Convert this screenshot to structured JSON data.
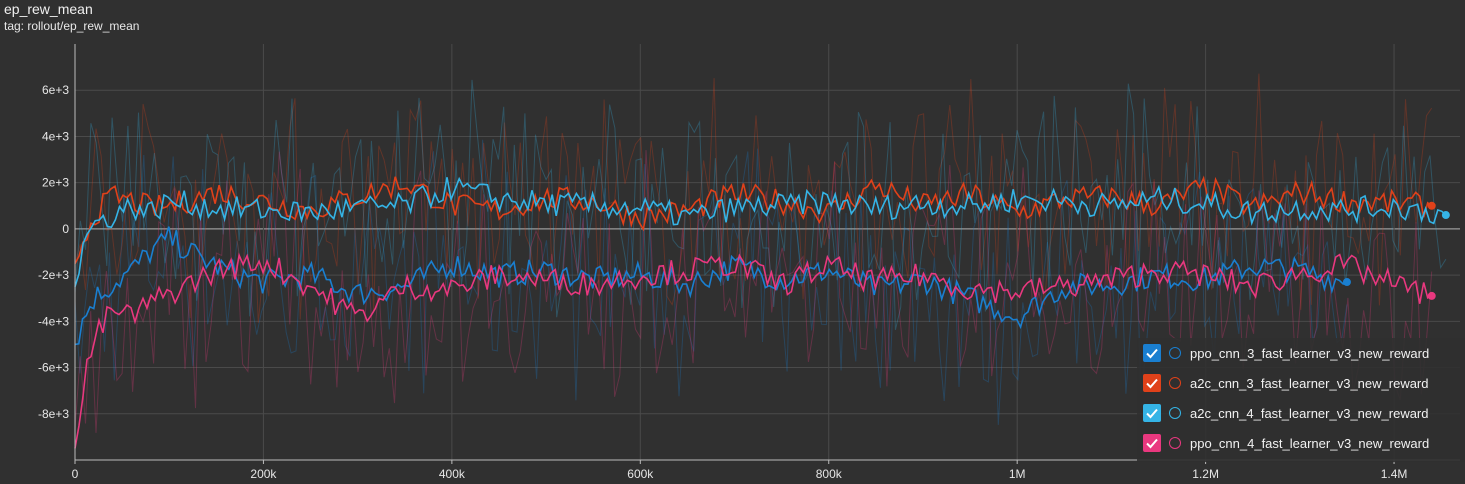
{
  "header": {
    "title": "ep_rew_mean",
    "subtitle": "tag: rollout/ep_rew_mean"
  },
  "chart_data": {
    "type": "line",
    "xlabel": "",
    "ylabel": "",
    "xlim": [
      0,
      1470000
    ],
    "ylim": [
      -10000,
      8000
    ],
    "x_ticks": [
      {
        "value": 0,
        "label": "0"
      },
      {
        "value": 200000,
        "label": "200k"
      },
      {
        "value": 400000,
        "label": "400k"
      },
      {
        "value": 600000,
        "label": "600k"
      },
      {
        "value": 800000,
        "label": "800k"
      },
      {
        "value": 1000000,
        "label": "1M"
      },
      {
        "value": 1200000,
        "label": "1.2M"
      },
      {
        "value": 1400000,
        "label": "1.4M"
      }
    ],
    "y_ticks": [
      {
        "value": 6000,
        "label": "6e+3"
      },
      {
        "value": 4000,
        "label": "4e+3"
      },
      {
        "value": 2000,
        "label": "2e+3"
      },
      {
        "value": 0,
        "label": "0"
      },
      {
        "value": -2000,
        "label": "-2e+3"
      },
      {
        "value": -4000,
        "label": "-4e+3"
      },
      {
        "value": -6000,
        "label": "-6e+3"
      },
      {
        "value": -8000,
        "label": "-8e+3"
      }
    ],
    "grid": true,
    "legend_position": "bottom-right",
    "series": [
      {
        "name": "ppo_cnn_3_fast_learner_v3_new_reward",
        "color": "#1a7fd0",
        "x": [
          0,
          10000,
          20000,
          40000,
          60000,
          80000,
          100000,
          130000,
          160000,
          200000,
          250000,
          300000,
          350000,
          400000,
          450000,
          500000,
          550000,
          600000,
          650000,
          700000,
          750000,
          800000,
          850000,
          900000,
          950000,
          1000000,
          1050000,
          1100000,
          1150000,
          1200000,
          1250000,
          1300000,
          1350000
        ],
        "y": [
          -5000,
          -3800,
          -3000,
          -2400,
          -1800,
          -1000,
          -400,
          -1200,
          -1800,
          -2300,
          -2000,
          -2800,
          -2500,
          -1500,
          -2000,
          -1800,
          -2200,
          -2000,
          -2400,
          -1600,
          -2200,
          -1800,
          -2600,
          -2200,
          -3000,
          -3800,
          -2500,
          -2400,
          -2000,
          -2200,
          -1600,
          -1800,
          -2300
        ]
      },
      {
        "name": "a2c_cnn_3_fast_learner_v3_new_reward",
        "color": "#e0411a",
        "x": [
          0,
          10000,
          20000,
          40000,
          60000,
          80000,
          100000,
          150000,
          200000,
          250000,
          300000,
          350000,
          400000,
          450000,
          500000,
          550000,
          600000,
          650000,
          700000,
          750000,
          800000,
          850000,
          900000,
          950000,
          1000000,
          1050000,
          1100000,
          1150000,
          1200000,
          1250000,
          1300000,
          1350000,
          1400000,
          1440000
        ],
        "y": [
          -1500,
          -300,
          600,
          1400,
          1200,
          900,
          1000,
          1600,
          1200,
          800,
          1400,
          2000,
          1000,
          800,
          1300,
          1200,
          500,
          800,
          1500,
          1200,
          700,
          1900,
          1000,
          1500,
          700,
          1300,
          1400,
          1000,
          1800,
          900,
          1600,
          1200,
          1100,
          1000
        ]
      },
      {
        "name": "a2c_cnn_4_fast_learner_v3_new_reward",
        "color": "#35b4e6",
        "x": [
          0,
          10000,
          20000,
          40000,
          60000,
          80000,
          100000,
          150000,
          200000,
          250000,
          300000,
          350000,
          400000,
          450000,
          500000,
          550000,
          600000,
          650000,
          700000,
          750000,
          800000,
          850000,
          900000,
          950000,
          1000000,
          1050000,
          1100000,
          1150000,
          1200000,
          1250000,
          1300000,
          1350000,
          1400000,
          1455000
        ],
        "y": [
          -2500,
          -500,
          200,
          600,
          1000,
          700,
          1200,
          900,
          800,
          700,
          900,
          1000,
          1800,
          1300,
          1100,
          1000,
          900,
          500,
          900,
          1000,
          1200,
          900,
          1100,
          1000,
          1300,
          1200,
          1000,
          1300,
          1100,
          700,
          900,
          800,
          1000,
          600
        ]
      },
      {
        "name": "ppo_cnn_4_fast_learner_v3_new_reward",
        "color": "#e9387f",
        "x": [
          0,
          5000,
          10000,
          20000,
          40000,
          60000,
          80000,
          100000,
          150000,
          200000,
          250000,
          300000,
          350000,
          400000,
          450000,
          500000,
          550000,
          600000,
          650000,
          700000,
          750000,
          800000,
          850000,
          900000,
          950000,
          1000000,
          1050000,
          1100000,
          1150000,
          1200000,
          1250000,
          1300000,
          1350000,
          1400000,
          1440000
        ],
        "y": [
          -9500,
          -8500,
          -6500,
          -4800,
          -3500,
          -3800,
          -3200,
          -2800,
          -1800,
          -1400,
          -2500,
          -3800,
          -2500,
          -2600,
          -2000,
          -2200,
          -2400,
          -2000,
          -1800,
          -1500,
          -2400,
          -1600,
          -2300,
          -2000,
          -2600,
          -2700,
          -2500,
          -2200,
          -1800,
          -2000,
          -2500,
          -1900,
          -1600,
          -2400,
          -2900
        ]
      }
    ]
  }
}
